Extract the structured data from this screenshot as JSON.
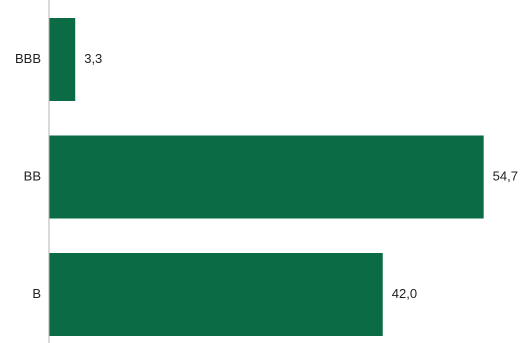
{
  "chart_data": {
    "type": "bar",
    "orientation": "horizontal",
    "categories": [
      "BBB",
      "BB",
      "B"
    ],
    "values": [
      3.3,
      54.7,
      42.0
    ],
    "value_labels": [
      "3,3",
      "54,7",
      "42,0"
    ],
    "title": "",
    "xlabel": "",
    "ylabel": "",
    "xlim": [
      0,
      56
    ],
    "grid": false,
    "legend": "none",
    "bar_color": "#0a6b45",
    "axis_color": "#b3b3b3",
    "text_color": "#222222"
  }
}
